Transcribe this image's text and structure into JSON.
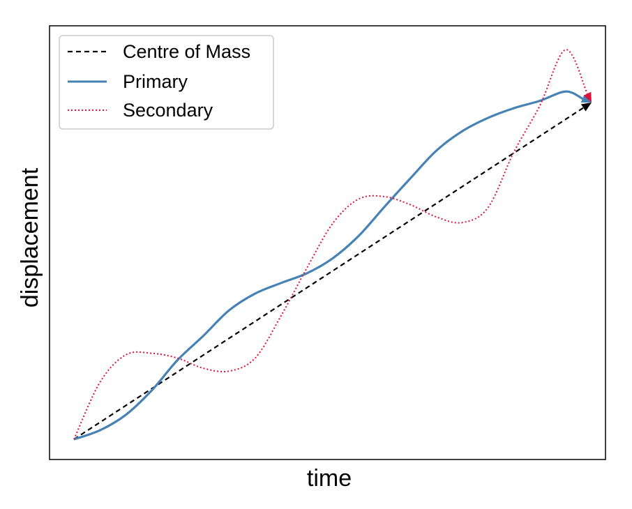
{
  "chart_data": {
    "type": "line",
    "title": "",
    "xlabel": "time",
    "ylabel": "displacement",
    "xlim": [
      0,
      1
    ],
    "ylim": [
      0,
      1
    ],
    "grid": false,
    "ticks": "none",
    "legend_placement": "top-left",
    "series": [
      {
        "name": "Centre of Mass",
        "style": "dashed",
        "color": "#000000",
        "arrow_at_end": true,
        "x": [
          0.0,
          1.0
        ],
        "y": [
          0.0,
          0.83
        ]
      },
      {
        "name": "Primary",
        "style": "solid",
        "color": "#4682b4",
        "arrow_at_end": true,
        "x": [
          0.0,
          0.05,
          0.1,
          0.15,
          0.2,
          0.25,
          0.3,
          0.35,
          0.4,
          0.45,
          0.5,
          0.55,
          0.6,
          0.65,
          0.7,
          0.75,
          0.8,
          0.85,
          0.9,
          0.95,
          1.0
        ],
        "y": [
          0.0,
          0.022,
          0.06,
          0.12,
          0.195,
          0.255,
          0.318,
          0.359,
          0.385,
          0.409,
          0.446,
          0.501,
          0.573,
          0.643,
          0.711,
          0.759,
          0.792,
          0.816,
          0.834,
          0.857,
          0.83
        ]
      },
      {
        "name": "Secondary",
        "style": "dotted",
        "color": "#dc143c",
        "arrow_at_end": true,
        "x": [
          0.0,
          0.05,
          0.1,
          0.15,
          0.2,
          0.25,
          0.3,
          0.35,
          0.4,
          0.45,
          0.5,
          0.55,
          0.6,
          0.65,
          0.7,
          0.75,
          0.8,
          0.85,
          0.9,
          0.95,
          1.0
        ],
        "y": [
          0.0,
          0.14,
          0.208,
          0.212,
          0.2,
          0.175,
          0.168,
          0.2,
          0.304,
          0.422,
          0.532,
          0.592,
          0.598,
          0.578,
          0.548,
          0.534,
          0.571,
          0.708,
          0.822,
          0.96,
          0.83
        ]
      }
    ]
  }
}
